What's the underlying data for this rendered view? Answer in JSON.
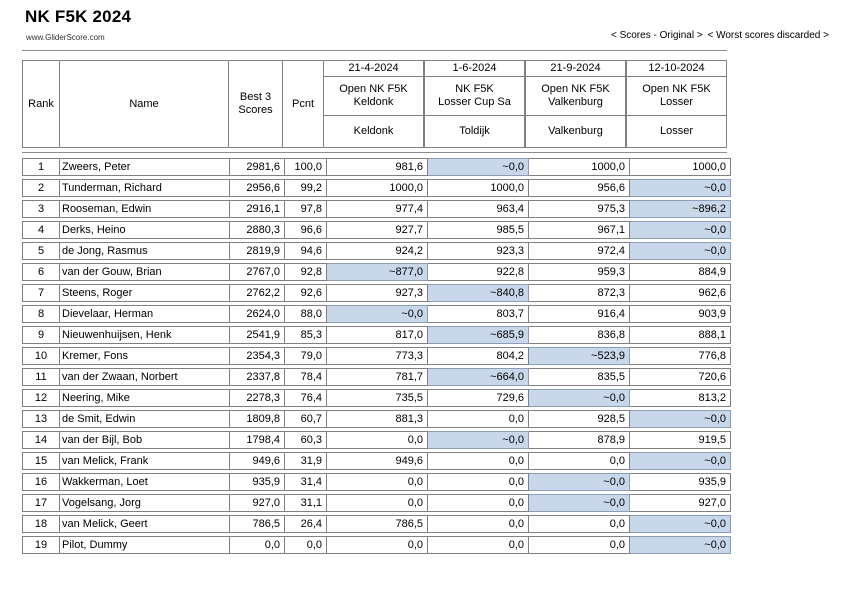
{
  "title": "NK F5K 2024",
  "subtitle": "www.GliderScore.com",
  "nav": {
    "original": "< Scores - Original >",
    "discarded": "< Worst scores discarded >"
  },
  "colors": {
    "discard_highlight": "#c9d7eb",
    "border": "#808080"
  },
  "table": {
    "headers": {
      "rank": "Rank",
      "name": "Name",
      "best3": "Best 3 Scores",
      "pcnt": "Pcnt"
    },
    "events": [
      {
        "date": "21-4-2024",
        "name_lines": [
          "Open NK F5K",
          "Keldonk"
        ],
        "location": "Keldonk"
      },
      {
        "date": "1-6-2024",
        "name_lines": [
          "NK F5K",
          "Losser Cup Sa"
        ],
        "location": "Toldijk"
      },
      {
        "date": "21-9-2024",
        "name_lines": [
          "Open NK F5K",
          "Valkenburg"
        ],
        "location": "Valkenburg"
      },
      {
        "date": "12-10-2024",
        "name_lines": [
          "Open NK F5K",
          "Losser"
        ],
        "location": "Losser"
      }
    ],
    "rows": [
      {
        "rank": 1,
        "name": "Zweers, Peter",
        "best3": "2981,6",
        "pcnt": "100,0",
        "scores": [
          {
            "v": "981,6",
            "d": false
          },
          {
            "v": "~0,0",
            "d": true
          },
          {
            "v": "1000,0",
            "d": false
          },
          {
            "v": "1000,0",
            "d": false
          }
        ]
      },
      {
        "rank": 2,
        "name": "Tunderman, Richard",
        "best3": "2956,6",
        "pcnt": "99,2",
        "scores": [
          {
            "v": "1000,0",
            "d": false
          },
          {
            "v": "1000,0",
            "d": false
          },
          {
            "v": "956,6",
            "d": false
          },
          {
            "v": "~0,0",
            "d": true
          }
        ]
      },
      {
        "rank": 3,
        "name": "Rooseman, Edwin",
        "best3": "2916,1",
        "pcnt": "97,8",
        "scores": [
          {
            "v": "977,4",
            "d": false
          },
          {
            "v": "963,4",
            "d": false
          },
          {
            "v": "975,3",
            "d": false
          },
          {
            "v": "~896,2",
            "d": true
          }
        ]
      },
      {
        "rank": 4,
        "name": "Derks, Heino",
        "best3": "2880,3",
        "pcnt": "96,6",
        "scores": [
          {
            "v": "927,7",
            "d": false
          },
          {
            "v": "985,5",
            "d": false
          },
          {
            "v": "967,1",
            "d": false
          },
          {
            "v": "~0,0",
            "d": true
          }
        ]
      },
      {
        "rank": 5,
        "name": "de Jong, Rasmus",
        "best3": "2819,9",
        "pcnt": "94,6",
        "scores": [
          {
            "v": "924,2",
            "d": false
          },
          {
            "v": "923,3",
            "d": false
          },
          {
            "v": "972,4",
            "d": false
          },
          {
            "v": "~0,0",
            "d": true
          }
        ]
      },
      {
        "rank": 6,
        "name": "van der Gouw, Brian",
        "best3": "2767,0",
        "pcnt": "92,8",
        "scores": [
          {
            "v": "~877,0",
            "d": true
          },
          {
            "v": "922,8",
            "d": false
          },
          {
            "v": "959,3",
            "d": false
          },
          {
            "v": "884,9",
            "d": false
          }
        ]
      },
      {
        "rank": 7,
        "name": "Steens, Roger",
        "best3": "2762,2",
        "pcnt": "92,6",
        "scores": [
          {
            "v": "927,3",
            "d": false
          },
          {
            "v": "~840,8",
            "d": true
          },
          {
            "v": "872,3",
            "d": false
          },
          {
            "v": "962,6",
            "d": false
          }
        ]
      },
      {
        "rank": 8,
        "name": "Dievelaar, Herman",
        "best3": "2624,0",
        "pcnt": "88,0",
        "scores": [
          {
            "v": "~0,0",
            "d": true
          },
          {
            "v": "803,7",
            "d": false
          },
          {
            "v": "916,4",
            "d": false
          },
          {
            "v": "903,9",
            "d": false
          }
        ]
      },
      {
        "rank": 9,
        "name": "Nieuwenhuijsen, Henk",
        "best3": "2541,9",
        "pcnt": "85,3",
        "scores": [
          {
            "v": "817,0",
            "d": false
          },
          {
            "v": "~685,9",
            "d": true
          },
          {
            "v": "836,8",
            "d": false
          },
          {
            "v": "888,1",
            "d": false
          }
        ]
      },
      {
        "rank": 10,
        "name": "Kremer, Fons",
        "best3": "2354,3",
        "pcnt": "79,0",
        "scores": [
          {
            "v": "773,3",
            "d": false
          },
          {
            "v": "804,2",
            "d": false
          },
          {
            "v": "~523,9",
            "d": true
          },
          {
            "v": "776,8",
            "d": false
          }
        ]
      },
      {
        "rank": 11,
        "name": "van der Zwaan, Norbert",
        "best3": "2337,8",
        "pcnt": "78,4",
        "scores": [
          {
            "v": "781,7",
            "d": false
          },
          {
            "v": "~664,0",
            "d": true
          },
          {
            "v": "835,5",
            "d": false
          },
          {
            "v": "720,6",
            "d": false
          }
        ]
      },
      {
        "rank": 12,
        "name": "Neering, Mike",
        "best3": "2278,3",
        "pcnt": "76,4",
        "scores": [
          {
            "v": "735,5",
            "d": false
          },
          {
            "v": "729,6",
            "d": false
          },
          {
            "v": "~0,0",
            "d": true
          },
          {
            "v": "813,2",
            "d": false
          }
        ]
      },
      {
        "rank": 13,
        "name": "de Smit, Edwin",
        "best3": "1809,8",
        "pcnt": "60,7",
        "scores": [
          {
            "v": "881,3",
            "d": false
          },
          {
            "v": "0,0",
            "d": false
          },
          {
            "v": "928,5",
            "d": false
          },
          {
            "v": "~0,0",
            "d": true
          }
        ]
      },
      {
        "rank": 14,
        "name": "van der Bijl, Bob",
        "best3": "1798,4",
        "pcnt": "60,3",
        "scores": [
          {
            "v": "0,0",
            "d": false
          },
          {
            "v": "~0,0",
            "d": true
          },
          {
            "v": "878,9",
            "d": false
          },
          {
            "v": "919,5",
            "d": false
          }
        ]
      },
      {
        "rank": 15,
        "name": "van Melick, Frank",
        "best3": "949,6",
        "pcnt": "31,9",
        "scores": [
          {
            "v": "949,6",
            "d": false
          },
          {
            "v": "0,0",
            "d": false
          },
          {
            "v": "0,0",
            "d": false
          },
          {
            "v": "~0,0",
            "d": true
          }
        ]
      },
      {
        "rank": 16,
        "name": "Wakkerman, Loet",
        "best3": "935,9",
        "pcnt": "31,4",
        "scores": [
          {
            "v": "0,0",
            "d": false
          },
          {
            "v": "0,0",
            "d": false
          },
          {
            "v": "~0,0",
            "d": true
          },
          {
            "v": "935,9",
            "d": false
          }
        ]
      },
      {
        "rank": 17,
        "name": "Vogelsang, Jorg",
        "best3": "927,0",
        "pcnt": "31,1",
        "scores": [
          {
            "v": "0,0",
            "d": false
          },
          {
            "v": "0,0",
            "d": false
          },
          {
            "v": "~0,0",
            "d": true
          },
          {
            "v": "927,0",
            "d": false
          }
        ]
      },
      {
        "rank": 18,
        "name": "van Melick, Geert",
        "best3": "786,5",
        "pcnt": "26,4",
        "scores": [
          {
            "v": "786,5",
            "d": false
          },
          {
            "v": "0,0",
            "d": false
          },
          {
            "v": "0,0",
            "d": false
          },
          {
            "v": "~0,0",
            "d": true
          }
        ]
      },
      {
        "rank": 19,
        "name": "Pilot, Dummy",
        "best3": "0,0",
        "pcnt": "0,0",
        "scores": [
          {
            "v": "0,0",
            "d": false
          },
          {
            "v": "0,0",
            "d": false
          },
          {
            "v": "0,0",
            "d": false
          },
          {
            "v": "~0,0",
            "d": true
          }
        ]
      }
    ]
  }
}
